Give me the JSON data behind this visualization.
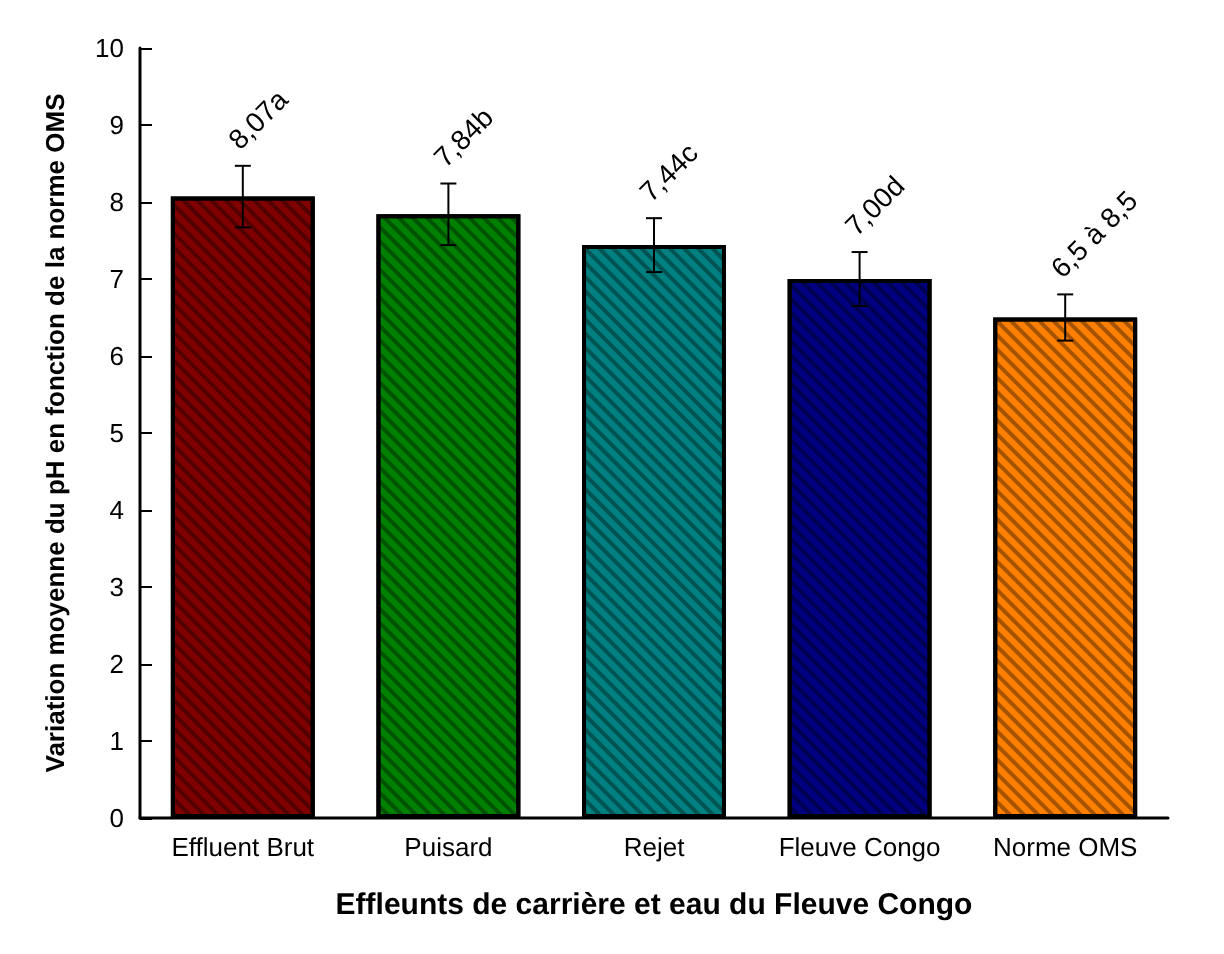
{
  "chart_data": {
    "type": "bar",
    "xlabel": "Effleunts de carrière et eau du Fleuve Congo",
    "ylabel": "Variation moyenne du pH en fonction de la norme OMS",
    "categories": [
      "Effluent Brut",
      "Puisard",
      "Rejet",
      "Fleuve Congo",
      "Norme OMS"
    ],
    "values": [
      8.07,
      7.84,
      7.44,
      7.0,
      6.5
    ],
    "colors": [
      "#800000",
      "#008000",
      "#008080",
      "#000080",
      "#ff8000"
    ],
    "errors": [
      0.4,
      0.4,
      0.35,
      0.35,
      0.3
    ],
    "value_labels": [
      "8,07a",
      "7,84b",
      "7,44c",
      "7,00d",
      "6,5 à 8,5"
    ],
    "ylim": [
      0,
      10
    ],
    "yticks": [
      0,
      1,
      2,
      3,
      4,
      5,
      6,
      7,
      8,
      9,
      10
    ]
  }
}
